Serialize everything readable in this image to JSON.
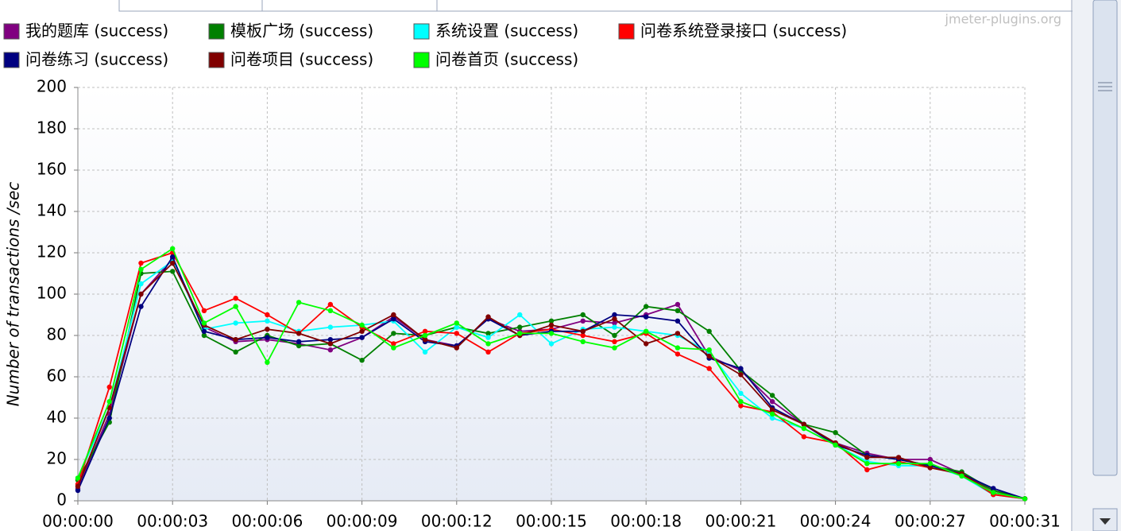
{
  "chart_data": {
    "type": "line",
    "watermark": "jmeter-plugins.org",
    "y_label": "Number of transactions /sec",
    "x": [
      0,
      1,
      2,
      3,
      4,
      5,
      6,
      7,
      8,
      9,
      10,
      11,
      12,
      13,
      14,
      15,
      16,
      17,
      18,
      19,
      20,
      21,
      22,
      23,
      24,
      25,
      26,
      27,
      28,
      29,
      30
    ],
    "xlim": [
      0,
      30
    ],
    "xticks": [
      {
        "value": 0,
        "label": "00:00:00"
      },
      {
        "value": 3,
        "label": "00:00:03"
      },
      {
        "value": 6,
        "label": "00:00:06"
      },
      {
        "value": 9,
        "label": "00:00:09"
      },
      {
        "value": 12,
        "label": "00:00:12"
      },
      {
        "value": 15,
        "label": "00:00:15"
      },
      {
        "value": 18,
        "label": "00:00:18"
      },
      {
        "value": 21,
        "label": "00:00:21"
      },
      {
        "value": 24,
        "label": "00:00:24"
      },
      {
        "value": 27,
        "label": "00:00:27"
      },
      {
        "value": 30,
        "label": "00:00:31"
      }
    ],
    "ylim": [
      0,
      200
    ],
    "yticks": [
      0,
      20,
      40,
      60,
      80,
      100,
      120,
      140,
      160,
      180,
      200
    ],
    "grid": true,
    "series": [
      {
        "name": "我的题库 (success)",
        "color": "#800080",
        "values": [
          6,
          42,
          100,
          117,
          84,
          77,
          78,
          76,
          73,
          79,
          89,
          78,
          75,
          88,
          82,
          83,
          87,
          86,
          90,
          95,
          70,
          63,
          48,
          37,
          28,
          23,
          20,
          20,
          13,
          5,
          1
        ]
      },
      {
        "name": "模板广场 (success)",
        "color": "#008000",
        "values": [
          10,
          38,
          110,
          111,
          80,
          72,
          80,
          75,
          76,
          68,
          81,
          80,
          84,
          81,
          84,
          87,
          90,
          80,
          94,
          92,
          82,
          63,
          51,
          37,
          33,
          22,
          20,
          17,
          14,
          5,
          1
        ]
      },
      {
        "name": "系统设置 (success)",
        "color": "#00ffff",
        "values": [
          11,
          45,
          105,
          116,
          83,
          86,
          87,
          82,
          84,
          85,
          87,
          72,
          84,
          79,
          90,
          76,
          83,
          84,
          82,
          80,
          72,
          52,
          40,
          35,
          27,
          19,
          17,
          17,
          12,
          3,
          1
        ]
      },
      {
        "name": "问卷系统登录接口 (success)",
        "color": "#ff0000",
        "values": [
          8,
          55,
          115,
          120,
          92,
          98,
          90,
          81,
          95,
          84,
          76,
          82,
          81,
          72,
          81,
          83,
          80,
          77,
          81,
          71,
          64,
          46,
          43,
          31,
          28,
          15,
          19,
          16,
          13,
          3,
          1
        ]
      },
      {
        "name": "问卷练习 (success)",
        "color": "#000080",
        "values": [
          5,
          40,
          94,
          118,
          82,
          78,
          79,
          77,
          78,
          79,
          88,
          77,
          75,
          88,
          80,
          82,
          82,
          90,
          89,
          87,
          69,
          64,
          45,
          37,
          27,
          22,
          20,
          17,
          13,
          6,
          1
        ]
      },
      {
        "name": "问卷项目 (success)",
        "color": "#800000",
        "values": [
          7,
          45,
          100,
          115,
          85,
          78,
          83,
          81,
          76,
          82,
          90,
          78,
          74,
          89,
          80,
          85,
          82,
          88,
          76,
          81,
          70,
          61,
          44,
          37,
          28,
          21,
          21,
          16,
          13,
          4,
          1
        ]
      },
      {
        "name": "问卷首页 (success)",
        "color": "#00ff00",
        "values": [
          11,
          48,
          112,
          122,
          86,
          94,
          67,
          96,
          92,
          85,
          74,
          80,
          86,
          76,
          81,
          81,
          77,
          74,
          82,
          74,
          73,
          48,
          42,
          35,
          27,
          18,
          18,
          18,
          12,
          4,
          1
        ]
      }
    ]
  }
}
